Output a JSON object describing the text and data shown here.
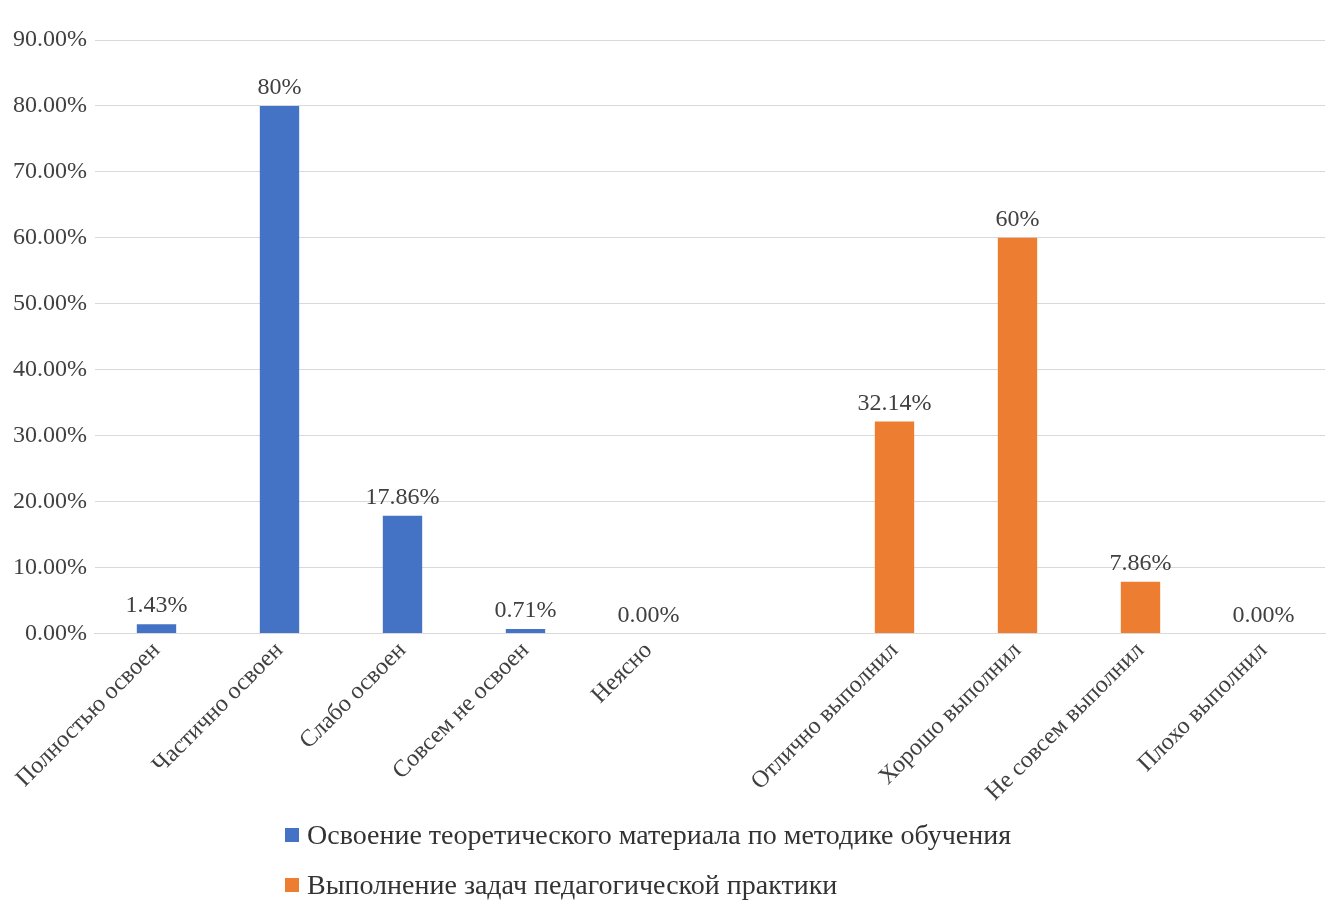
{
  "chart_data": {
    "type": "bar",
    "categories": [
      "Полностью освоен",
      "Частично освоен",
      "Слабо освоен",
      "Совсем не освоен",
      "Неясно",
      null,
      "Отлично выполнил",
      "Хорошо выполнил",
      "Не совсем выполнил",
      "Плохо выполнил"
    ],
    "series": [
      {
        "name": "Освоение теоретического материала по методике обучения",
        "color": "#4472c4",
        "values": [
          1.43,
          80,
          17.86,
          0.71,
          0,
          null,
          null,
          null,
          null,
          null
        ],
        "value_labels": [
          "1.43%",
          "80%",
          "17.86%",
          "0.71%",
          "0.00%",
          null,
          null,
          null,
          null,
          null
        ]
      },
      {
        "name": "Выполнение задач педагогической практики",
        "color": "#ed7d31",
        "values": [
          null,
          null,
          null,
          null,
          null,
          null,
          32.14,
          60,
          7.86,
          0
        ],
        "value_labels": [
          null,
          null,
          null,
          null,
          null,
          null,
          "32.14%",
          "60%",
          "7.86%",
          "0.00%"
        ]
      }
    ],
    "ylim": [
      0,
      90
    ],
    "yticks": [
      {
        "value": 0,
        "label": "0.00%"
      },
      {
        "value": 10,
        "label": "10.00%"
      },
      {
        "value": 20,
        "label": "20.00%"
      },
      {
        "value": 30,
        "label": "30.00%"
      },
      {
        "value": 40,
        "label": "40.00%"
      },
      {
        "value": 50,
        "label": "50.00%"
      },
      {
        "value": 60,
        "label": "60.00%"
      },
      {
        "value": 70,
        "label": "70.00%"
      },
      {
        "value": 80,
        "label": "80.00%"
      },
      {
        "value": 90,
        "label": "90.00%"
      }
    ],
    "grid": "y",
    "legend": "bottom"
  }
}
